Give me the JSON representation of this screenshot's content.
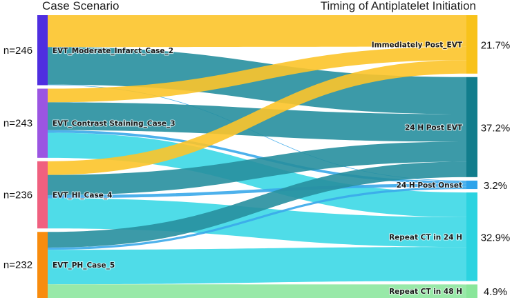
{
  "chart_data": {
    "type": "sankey",
    "title_left": "Case Scenario",
    "title_right": "Timing of Antiplatelet Initiation",
    "sources": [
      {
        "id": "s2",
        "label": "EVT_Moderate_Infarct_Case_2",
        "n_label": "n=246",
        "n": 246,
        "color": "#4f2ee0"
      },
      {
        "id": "s3",
        "label": "EVT_Contrast Staining_Case_3",
        "n_label": "n=243",
        "n": 243,
        "color": "#9b55e2"
      },
      {
        "id": "s4",
        "label": "EVT_HI_Case_4",
        "n_label": "n=236",
        "n": 236,
        "color": "#f0607f"
      },
      {
        "id": "s5",
        "label": "EVT_PH_Case_5",
        "n_label": "n=232",
        "n": 232,
        "color": "#f88c0e"
      }
    ],
    "targets": [
      {
        "id": "t1",
        "label": "Immediately Post_EVT",
        "pct_label": "21.7%",
        "pct": 21.7,
        "color": "#f8c21a"
      },
      {
        "id": "t2",
        "label": "24 H Post EVT",
        "pct_label": "37.2%",
        "pct": 37.2,
        "color": "#117d8c"
      },
      {
        "id": "t3",
        "label": "24 H Post Onset",
        "pct_label": "3.2%",
        "pct": 3.2,
        "color": "#2ea3ea"
      },
      {
        "id": "t4",
        "label": "Repeat CT in 24 H",
        "pct_label": "32.9%",
        "pct": 32.9,
        "color": "#2bd3e0"
      },
      {
        "id": "t5",
        "label": "Repeat CT in 48 H",
        "pct_label": "4.9%",
        "pct": 4.9,
        "color": "#89e69a"
      }
    ],
    "flows": [
      {
        "source": "s2",
        "target": "t1",
        "value": 112,
        "color": "#fcc42a"
      },
      {
        "source": "s2",
        "target": "t2",
        "value": 132,
        "color": "#278f9e"
      },
      {
        "source": "s2",
        "target": "t3",
        "value": 2,
        "color": "#3aa8ea"
      },
      {
        "source": "s3",
        "target": "t1",
        "value": 48,
        "color": "#fcc42a"
      },
      {
        "source": "s3",
        "target": "t2",
        "value": 98,
        "color": "#278f9e"
      },
      {
        "source": "s3",
        "target": "t3",
        "value": 9,
        "color": "#3aa8ea"
      },
      {
        "source": "s3",
        "target": "t4",
        "value": 88,
        "color": "#3cd8e6"
      },
      {
        "source": "s4",
        "target": "t1",
        "value": 48,
        "color": "#fcc42a"
      },
      {
        "source": "s4",
        "target": "t2",
        "value": 71,
        "color": "#278f9e"
      },
      {
        "source": "s4",
        "target": "t3",
        "value": 11,
        "color": "#3aa8ea"
      },
      {
        "source": "s4",
        "target": "t4",
        "value": 106,
        "color": "#3cd8e6"
      },
      {
        "source": "s5",
        "target": "t2",
        "value": 55,
        "color": "#278f9e"
      },
      {
        "source": "s5",
        "target": "t3",
        "value": 8,
        "color": "#3aa8ea"
      },
      {
        "source": "s5",
        "target": "t4",
        "value": 121,
        "color": "#3cd8e6"
      },
      {
        "source": "s5",
        "target": "t5",
        "value": 48,
        "color": "#8de79f"
      }
    ]
  }
}
